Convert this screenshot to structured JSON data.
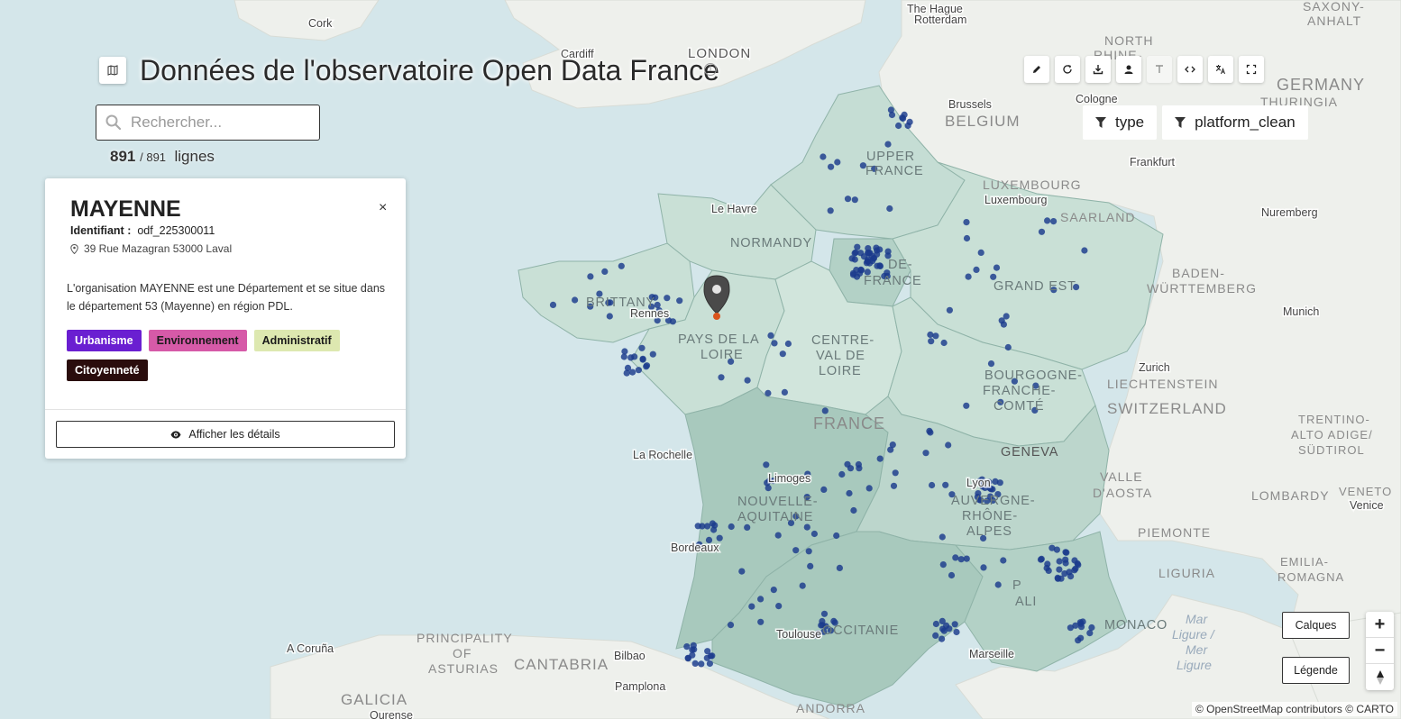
{
  "header": {
    "title": "Données de l'observatoire Open Data France",
    "info_icon": "info-icon",
    "map_icon": "map-icon"
  },
  "search": {
    "placeholder": "Rechercher...",
    "value": ""
  },
  "counter": {
    "shown": "891",
    "total": "/ 891",
    "unit": "lignes"
  },
  "toolbar": {
    "buttons": [
      "pencil-icon",
      "refresh-icon",
      "download-icon",
      "user-icon",
      "text-icon",
      "code-icon",
      "translate-icon",
      "fullscreen-icon"
    ]
  },
  "filters": {
    "type_label": "type",
    "platform_label": "platform_clean"
  },
  "popup": {
    "name": "MAYENNE",
    "identifier_label": "Identifiant :",
    "identifier_value": "odf_225300011",
    "address": "39 Rue Mazagran 53000 Laval",
    "description": "L'organisation MAYENNE est une Département et se situe dans le département 53 (Mayenne) en région PDL.",
    "tags": [
      {
        "label": "Urbanisme",
        "bg": "#6a1fd1",
        "fg": "#ffffff"
      },
      {
        "label": "Environnement",
        "bg": "#d65aa8",
        "fg": "#1a1a1a"
      },
      {
        "label": "Administratif",
        "bg": "#dde8b0",
        "fg": "#1a1a1a"
      },
      {
        "label": "Citoyenneté",
        "bg": "#2a0d0d",
        "fg": "#ffffff"
      }
    ],
    "details_label": "Afficher les détails",
    "close_label": "×"
  },
  "map_controls": {
    "layers_label": "Calques",
    "legend_label": "Légende",
    "zoom_in": "+",
    "zoom_out": "−",
    "reset_north": "↑"
  },
  "attribution": "© OpenStreetMap contributors © CARTO",
  "map_labels": {
    "cities": [
      "Cork",
      "Cardiff",
      "LONDON",
      "The Hague",
      "Rotterdam",
      "Brussels",
      "Cologne",
      "Frankfurt",
      "Luxembourg",
      "Nuremberg",
      "Munich",
      "Zurich",
      "Geneva",
      "Lyon",
      "Le Havre",
      "Rennes",
      "La Rochelle",
      "Limoges",
      "Bordeaux",
      "Toulouse",
      "Marseille",
      "A Coruña",
      "Bilbao",
      "Pamplona",
      "Ourense",
      "Venice",
      "Monaco"
    ],
    "countries": [
      "BELGIUM",
      "LUXEMBOURG",
      "SAARLAND",
      "BADEN-WÜRTTEMBERG",
      "LIECHTENSTEIN",
      "SWITZERLAND",
      "FRANCE",
      "ANDORRA",
      "LOMBARDY",
      "PIEMONTE",
      "LIGURIA",
      "CANTABRIA",
      "GALICIA",
      "PRINCIPALITY OF ASTURIAS",
      "GERMANY",
      "THURINGIA",
      "NORTH RHINE-WESTPHALIA",
      "SAXONY-ANHALT",
      "VALLE D'AOSTA",
      "TRENTINO-ALTO ADIGE/SÜDTIROL",
      "VENETO",
      "EMILIA-ROMAGNA"
    ],
    "regions": [
      "HAUTS-DE-FRANCE",
      "NORMANDY",
      "BRITTANY",
      "ÎLE-DE-FRANCE",
      "GRAND EST",
      "PAYS DE LA LOIRE",
      "CENTRE-VAL DE LOIRE",
      "BOURGOGNE-FRANCHE-COMTÉ",
      "NOUVELLE-AQUITAINE",
      "AUVERGNE-RHÔNE-ALPES",
      "OCCITANIE",
      "PROVENCE-ALPES-CÔTE D'AZUR"
    ],
    "seas": [
      "Mar Ligure / Mer Ligure"
    ]
  },
  "marker": {
    "label": "MAYENNE",
    "color": "#4a4a4a",
    "dot_color": "#d9541c"
  },
  "points_color": "#1b3a8c",
  "region_fill": "#bcd9cf"
}
